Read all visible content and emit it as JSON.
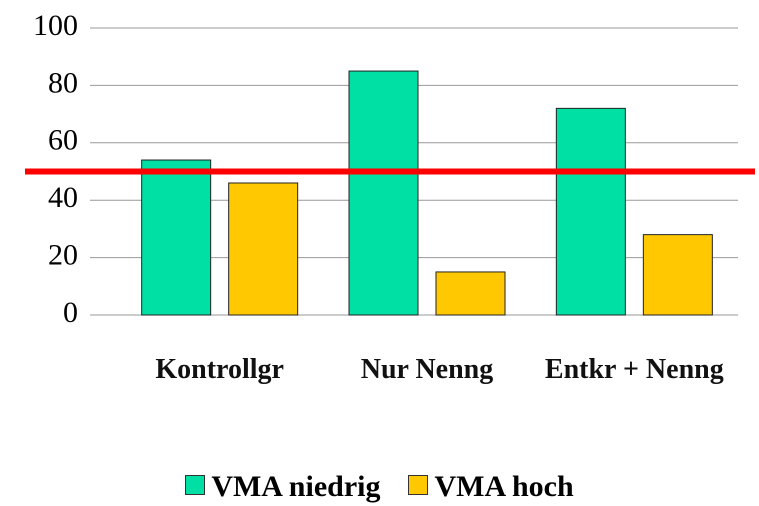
{
  "chart_data": {
    "type": "bar",
    "categories": [
      "Kontrollgr",
      "Nur Nenng",
      "Entkr + Nenng"
    ],
    "series": [
      {
        "name": "VMA niedrig",
        "color": "#00e0a4",
        "values": [
          54,
          85,
          72
        ]
      },
      {
        "name": "VMA hoch",
        "color": "#ffc800",
        "values": [
          46,
          15,
          28
        ]
      }
    ],
    "ylim": [
      0,
      100
    ],
    "yticks": [
      0,
      20,
      40,
      60,
      80,
      100
    ],
    "grid": true,
    "reference_line": {
      "value": 50,
      "color": "#ff0000"
    },
    "legend": "bottom"
  }
}
